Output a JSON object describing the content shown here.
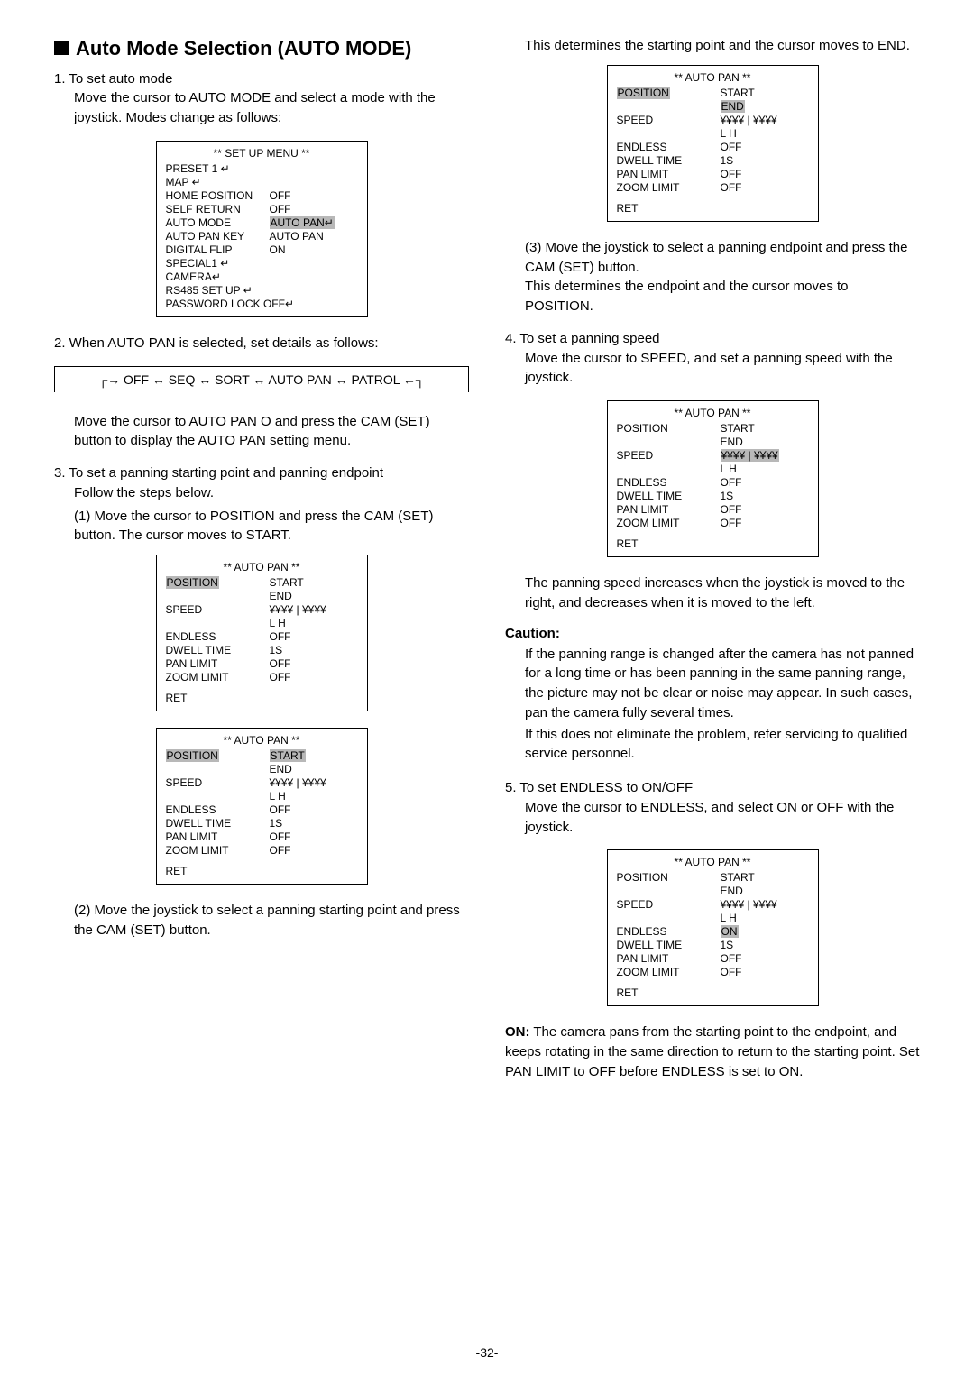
{
  "heading": "Auto Mode Selection (AUTO MODE)",
  "col1": {
    "step1_a": "1. To set auto mode",
    "step1_b": "Move the cursor to AUTO MODE and select a mode with the joystick. Modes change as follows:",
    "step2": "2. When AUTO PAN is selected, set details as follows:",
    "flow": "OFF ↔ SEQ ↔ SORT ↔ AUTO PAN ↔ PATROL",
    "step2_b": "Move the cursor to AUTO PAN O   and press the CAM (SET) button to display the AUTO PAN setting menu.",
    "step3": "3. To set a panning starting point and panning endpoint",
    "step3_follow": "Follow the steps below.",
    "step3_1": "(1) Move the cursor to POSITION and press the CAM (SET) button. The cursor moves to START.",
    "step3_2": "(2) Move the joystick to select a panning starting point and press the CAM (SET) button."
  },
  "col2": {
    "top": "This determines the starting point and the cursor moves to END.",
    "step3_3": "(3) Move the joystick to select a panning endpoint and press the CAM (SET) button.",
    "step3_3b": "This determines the endpoint and the cursor moves to POSITION.",
    "step4": "4. To set a panning speed",
    "step4_b": "Move the cursor to SPEED, and set a panning speed with the joystick.",
    "step4_note": "The panning speed increases when the joystick is moved to the right, and decreases when it is moved to the left.",
    "caution_label": "Caution:",
    "caution_1": "If the panning range is changed after the camera has not panned for a long time or has been panning in the same panning range, the picture may not be clear or noise may appear. In such cases, pan the camera fully several times.",
    "caution_2": "If this does not eliminate the problem, refer servicing to qualified service personnel.",
    "step5": "5. To set ENDLESS to ON/OFF",
    "step5_b": "Move the cursor to ENDLESS, and select ON or OFF with the joystick.",
    "on_label": "ON:",
    "on_text": " The camera pans from the starting point to the endpoint, and keeps rotating in the same direction to return to the starting point. Set PAN LIMIT to OFF before ENDLESS is set to ON."
  },
  "setup_menu": {
    "title": "** SET UP MENU **",
    "rows": [
      [
        "PRESET 1  ↵",
        ""
      ],
      [
        "MAP ↵",
        ""
      ],
      [
        "HOME POSITION",
        "OFF"
      ],
      [
        "SELF RETURN",
        "OFF"
      ],
      [
        "AUTO MODE",
        "AUTO PAN↵",
        "hl"
      ],
      [
        "AUTO PAN KEY",
        "AUTO PAN"
      ],
      [
        "DIGITAL FLIP",
        "ON"
      ],
      [
        "SPECIAL1  ↵",
        ""
      ],
      [
        "CAMERA↵",
        ""
      ],
      [
        "RS485 SET UP  ↵",
        ""
      ],
      [
        "PASSWORD LOCK OFF↵",
        ""
      ]
    ]
  },
  "autopan_base": {
    "title": "** AUTO PAN **",
    "rows": [
      [
        "POSITION",
        "START"
      ],
      [
        "",
        "END"
      ],
      [
        "SPEED",
        "¥¥¥¥ | ¥¥¥¥"
      ],
      [
        "",
        "L        H"
      ],
      [
        "ENDLESS",
        "OFF"
      ],
      [
        "DWELL TIME",
        "1S"
      ],
      [
        "PAN LIMIT",
        "OFF"
      ],
      [
        "ZOOM LIMIT",
        "OFF"
      ]
    ],
    "ret": "RET"
  },
  "page": "-32-"
}
